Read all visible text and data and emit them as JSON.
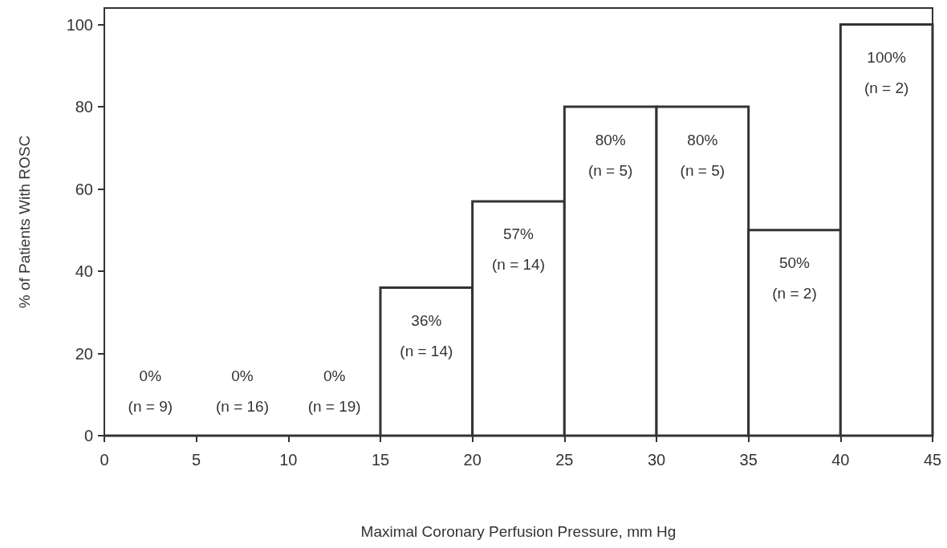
{
  "chart_data": {
    "type": "histogram",
    "xlabel": "Maximal Coronary Perfusion Pressure, mm Hg",
    "ylabel": "% of Patients With ROSC",
    "bins": [
      0,
      5,
      10,
      15,
      20,
      25,
      30,
      35,
      40,
      45
    ],
    "values": [
      0,
      0,
      0,
      36,
      57,
      80,
      80,
      50,
      100
    ],
    "value_labels": [
      "0%\n(n = 9)",
      "0%\n(n = 16)",
      "0%\n(n = 19)",
      "36%\n(n = 14)",
      "57%\n(n = 14)",
      "80%\n(n = 5)",
      "80%\n(n = 5)",
      "50%\n(n = 2)",
      "100%\n(n = 2)"
    ],
    "color": "#ffffff",
    "xlim": [
      0,
      45
    ],
    "xticks": [
      0,
      5,
      10,
      15,
      20,
      25,
      30,
      35,
      40,
      45
    ],
    "ylim": [
      0,
      104
    ],
    "yticks": [
      0,
      20,
      40,
      60,
      80,
      100
    ],
    "grid": false
  }
}
